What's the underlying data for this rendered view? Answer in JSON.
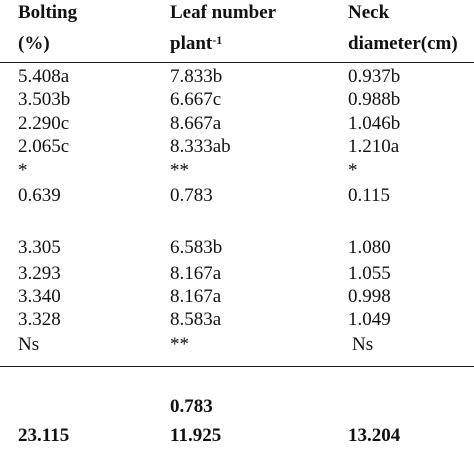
{
  "header": [
    {
      "lines": [
        "Bolting",
        "(%)"
      ]
    },
    {
      "lines": [
        "Leaf number",
        "plant"
      ],
      "sup": "-1"
    },
    {
      "lines": [
        "Neck",
        "diameter(cm)"
      ]
    }
  ],
  "rows": [
    [
      "5.408a",
      "7.833b",
      "0.937b"
    ],
    [
      "3.503b",
      "6.667c",
      "0.988b"
    ],
    [
      "2.290c",
      "8.667a",
      "1.046b"
    ],
    [
      "2.065c",
      "8.333ab",
      "1.210a"
    ],
    [
      "*",
      "**",
      "*"
    ],
    [
      "0.639",
      "0.783",
      "0.115"
    ],
    [
      "3.305",
      "6.583b",
      "1.080"
    ],
    [
      "3.293",
      "8.167a",
      "1.055"
    ],
    [
      "3.340",
      "8.167a",
      "0.998"
    ],
    [
      "3.328",
      "8.583a",
      "1.049"
    ],
    [
      "Ns",
      "**",
      "Ns"
    ]
  ],
  "footer": {
    "extra": "0.783",
    "totals": [
      "23.115",
      "11.925",
      "13.204"
    ]
  }
}
